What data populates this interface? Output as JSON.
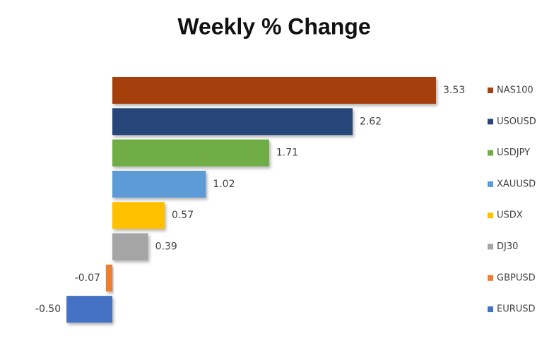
{
  "chart_data": {
    "type": "hbar",
    "title": "Weekly % Change",
    "categories": [
      "NAS100",
      "USOUSD",
      "USDJPY",
      "XAUUSD",
      "USDX",
      "DJ30",
      "GBPUSD",
      "EURUSD"
    ],
    "values": [
      3.53,
      2.62,
      1.71,
      1.02,
      0.57,
      0.39,
      -0.07,
      -0.5
    ],
    "value_labels": [
      "3.53",
      "2.62",
      "1.71",
      "1.02",
      "0.57",
      "0.39",
      "-0.07",
      "-0.50"
    ],
    "colors": [
      "#a5410d",
      "#264478",
      "#70ad47",
      "#5b9bd5",
      "#ffc000",
      "#a5a5a5",
      "#ed7d31",
      "#4472c4"
    ],
    "legend": "right"
  }
}
